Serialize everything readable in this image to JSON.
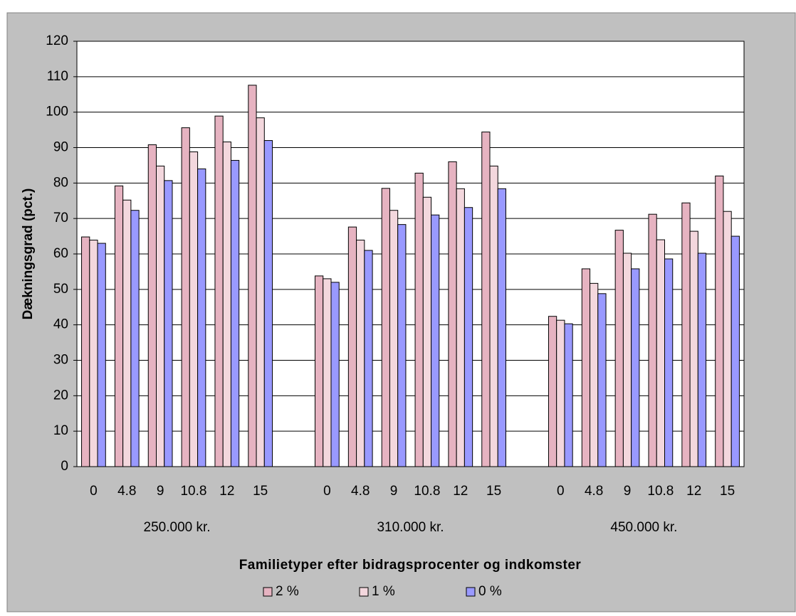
{
  "chart_data": {
    "type": "bar",
    "y_label": "Dækningsgrad (pct.)",
    "x_label": "Familietyper efter bidragsprocenter og indkomster",
    "categories": [
      "0",
      "4.8",
      "9",
      "10.8",
      "12",
      "15",
      null,
      "0",
      "4.8",
      "9",
      "10.8",
      "12",
      "15",
      null,
      "0",
      "4.8",
      "9",
      "10.8",
      "12",
      "15"
    ],
    "groups": [
      "250.000 kr.",
      "310.000 kr.",
      "450.000 kr."
    ],
    "series": [
      {
        "name": "2 %",
        "color": "#e6b3c1",
        "values": [
          64.8,
          79.2,
          90.8,
          95.6,
          98.9,
          107.6,
          null,
          53.8,
          67.6,
          78.5,
          82.8,
          86.0,
          94.4,
          null,
          42.4,
          55.8,
          66.7,
          71.2,
          74.4,
          82.0
        ]
      },
      {
        "name": "1 %",
        "color": "#f3d7dd",
        "values": [
          63.9,
          75.2,
          84.8,
          88.8,
          91.6,
          98.4,
          null,
          53.0,
          63.9,
          72.3,
          76.0,
          78.4,
          84.8,
          null,
          41.3,
          51.7,
          60.2,
          64.0,
          66.4,
          72.0
        ]
      },
      {
        "name": "0 %",
        "color": "#9999ff",
        "values": [
          63.0,
          72.3,
          80.7,
          84.0,
          86.4,
          92.0,
          null,
          52.0,
          61.0,
          68.3,
          71.0,
          73.1,
          78.4,
          null,
          40.3,
          48.8,
          55.8,
          58.6,
          60.2,
          65.0
        ]
      }
    ],
    "ylim": [
      0,
      120
    ],
    "yticks": [
      0,
      10,
      20,
      30,
      40,
      50,
      60,
      70,
      80,
      90,
      100,
      110,
      120
    ],
    "grid": true
  }
}
